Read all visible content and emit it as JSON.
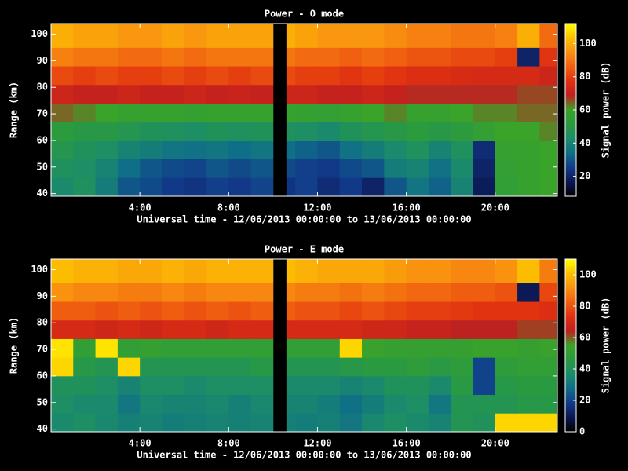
{
  "chart_data": [
    {
      "type": "heatmap",
      "title": "Power - O mode",
      "xlabel": "Universal time - 12/06/2013 00:00:00 to 13/06/2013 00:00:00",
      "ylabel": "Range (km)",
      "x_edges": [
        0,
        1,
        2,
        3,
        4,
        5,
        6,
        7,
        8,
        9,
        10,
        10.6,
        11,
        12,
        13,
        14,
        15,
        16,
        17,
        18,
        19,
        20,
        21,
        22,
        22.8
      ],
      "y_edges": [
        39,
        46,
        53,
        60,
        67,
        74,
        81,
        88,
        95,
        104
      ],
      "values": [
        [
          42,
          45,
          38,
          30,
          28,
          25,
          24,
          26,
          25,
          27,
          null,
          24,
          26,
          22,
          25,
          20,
          30,
          36,
          32,
          40,
          18,
          55,
          58,
          60
        ],
        [
          45,
          44,
          40,
          34,
          30,
          28,
          27,
          30,
          28,
          30,
          null,
          28,
          26,
          25,
          28,
          30,
          38,
          40,
          35,
          42,
          20,
          56,
          58,
          60
        ],
        [
          48,
          46,
          44,
          40,
          38,
          36,
          35,
          36,
          34,
          36,
          null,
          34,
          32,
          30,
          35,
          38,
          42,
          45,
          40,
          45,
          22,
          58,
          58,
          60
        ],
        [
          52,
          50,
          50,
          48,
          46,
          45,
          44,
          46,
          45,
          46,
          null,
          45,
          44,
          42,
          46,
          48,
          50,
          52,
          50,
          52,
          56,
          60,
          60,
          62
        ],
        [
          64,
          62,
          60,
          58,
          58,
          58,
          57,
          58,
          58,
          58,
          null,
          58,
          57,
          56,
          58,
          60,
          62,
          58,
          58,
          60,
          62,
          62,
          64,
          64
        ],
        [
          72,
          70,
          70,
          72,
          70,
          70,
          72,
          70,
          71,
          70,
          null,
          72,
          72,
          70,
          70,
          72,
          70,
          68,
          68,
          68,
          68,
          68,
          66,
          66
        ],
        [
          82,
          80,
          82,
          80,
          80,
          82,
          80,
          82,
          80,
          82,
          null,
          82,
          80,
          80,
          78,
          80,
          78,
          76,
          76,
          75,
          74,
          74,
          74,
          72
        ],
        [
          92,
          90,
          90,
          88,
          88,
          90,
          88,
          90,
          90,
          90,
          null,
          90,
          88,
          88,
          86,
          88,
          86,
          84,
          84,
          82,
          82,
          80,
          20,
          78
        ],
        [
          100,
          98,
          98,
          96,
          96,
          98,
          96,
          98,
          98,
          98,
          null,
          100,
          98,
          96,
          96,
          96,
          94,
          92,
          92,
          90,
          90,
          92,
          100,
          88
        ]
      ],
      "xlim": [
        0,
        22.8
      ],
      "ylim": [
        39,
        104
      ],
      "xticks": [
        {
          "value": 4,
          "label": "4:00"
        },
        {
          "value": 8,
          "label": "8:00"
        },
        {
          "value": 12,
          "label": "12:00"
        },
        {
          "value": 16,
          "label": "16:00"
        },
        {
          "value": 20,
          "label": "20:00"
        }
      ],
      "yticks": [
        40,
        50,
        60,
        70,
        80,
        90,
        100
      ],
      "colorbar": {
        "label": "Signal power (dB)",
        "lim": [
          8,
          112
        ],
        "ticks": [
          20,
          40,
          60,
          80,
          100
        ]
      },
      "colorscale": [
        "#000000",
        "#0b1650",
        "#123a8a",
        "#0f6e88",
        "#1c8c6a",
        "#2a9a40",
        "#3aa32a",
        "#c02020",
        "#e03010",
        "#f06010",
        "#f89010",
        "#fcc000",
        "#ffff00"
      ]
    },
    {
      "type": "heatmap",
      "title": "Power - E mode",
      "xlabel": "Universal time - 12/06/2013 00:00:00 to 13/06/2013 00:00:00",
      "ylabel": "Range (km)",
      "x_edges": [
        0,
        1,
        2,
        3,
        4,
        5,
        6,
        7,
        8,
        9,
        10,
        10.6,
        11,
        12,
        13,
        14,
        15,
        16,
        17,
        18,
        19,
        20,
        21,
        22,
        22.8
      ],
      "y_edges": [
        39,
        46,
        53,
        60,
        67,
        74,
        81,
        88,
        95,
        104
      ],
      "values": [
        [
          36,
          38,
          35,
          33,
          34,
          32,
          33,
          34,
          33,
          34,
          null,
          33,
          32,
          33,
          30,
          35,
          38,
          36,
          34,
          42,
          40,
          104,
          104,
          104
        ],
        [
          38,
          36,
          36,
          30,
          35,
          34,
          34,
          35,
          33,
          35,
          null,
          34,
          34,
          32,
          28,
          32,
          36,
          38,
          30,
          42,
          42,
          42,
          44,
          44
        ],
        [
          40,
          40,
          38,
          34,
          38,
          38,
          36,
          38,
          38,
          38,
          null,
          36,
          36,
          36,
          34,
          36,
          40,
          40,
          36,
          45,
          20,
          44,
          46,
          46
        ],
        [
          104,
          44,
          42,
          104,
          42,
          42,
          42,
          42,
          42,
          44,
          null,
          42,
          42,
          42,
          44,
          46,
          46,
          48,
          45,
          48,
          20,
          48,
          50,
          50
        ],
        [
          106,
          50,
          106,
          50,
          52,
          50,
          50,
          50,
          50,
          50,
          null,
          50,
          50,
          50,
          104,
          54,
          52,
          52,
          52,
          52,
          54,
          54,
          52,
          54
        ],
        [
          70,
          70,
          68,
          70,
          68,
          70,
          70,
          68,
          70,
          70,
          null,
          70,
          70,
          70,
          70,
          68,
          68,
          66,
          66,
          64,
          64,
          64,
          62,
          62
        ],
        [
          82,
          82,
          80,
          82,
          80,
          82,
          80,
          82,
          80,
          82,
          null,
          82,
          80,
          80,
          78,
          80,
          78,
          76,
          76,
          75,
          74,
          74,
          74,
          72
        ],
        [
          92,
          90,
          90,
          88,
          88,
          90,
          88,
          90,
          90,
          90,
          null,
          90,
          88,
          88,
          86,
          88,
          86,
          84,
          84,
          82,
          82,
          80,
          10,
          78
        ],
        [
          100,
          98,
          98,
          96,
          96,
          98,
          96,
          98,
          98,
          98,
          null,
          100,
          98,
          96,
          96,
          96,
          94,
          92,
          92,
          90,
          90,
          92,
          100,
          88
        ]
      ],
      "xlim": [
        0,
        22.8
      ],
      "ylim": [
        39,
        104
      ],
      "xticks": [
        {
          "value": 4,
          "label": "4:00"
        },
        {
          "value": 8,
          "label": "8:00"
        },
        {
          "value": 12,
          "label": "12:00"
        },
        {
          "value": 16,
          "label": "16:00"
        },
        {
          "value": 20,
          "label": "20:00"
        }
      ],
      "yticks": [
        40,
        50,
        60,
        70,
        80,
        90,
        100
      ],
      "colorbar": {
        "label": "Signal power (dB)",
        "lim": [
          0,
          110
        ],
        "ticks": [
          0,
          20,
          40,
          60,
          80,
          100
        ]
      },
      "colorscale": [
        "#000000",
        "#0b1650",
        "#123a8a",
        "#0f6e88",
        "#1c8c6a",
        "#2a9a40",
        "#3aa32a",
        "#c02020",
        "#e03010",
        "#f06010",
        "#f89010",
        "#fcc000",
        "#ffff00"
      ]
    }
  ]
}
